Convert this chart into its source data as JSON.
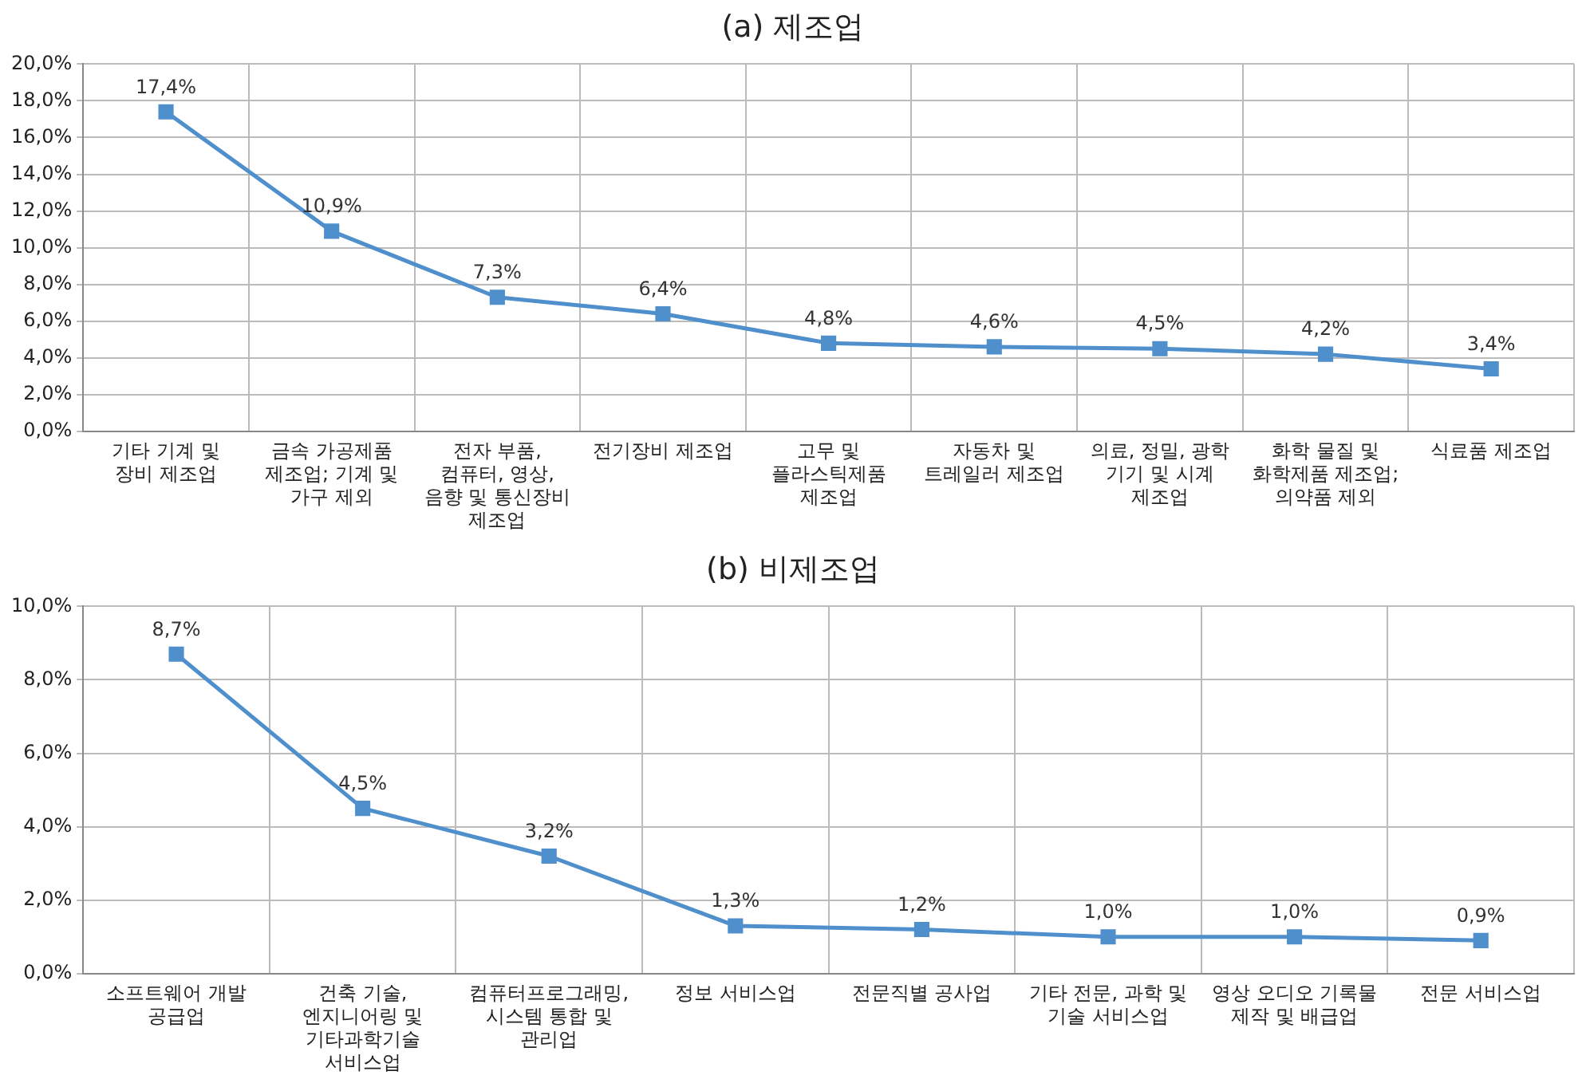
{
  "chart_data": [
    {
      "type": "line",
      "title": "(a) 제조업",
      "categories": [
        "기타 기계 및 장비 제조업",
        "금속 가공제품 제조업; 기계 및 가구 제외",
        "전자 부품, 컴퓨터, 영상, 음향 및 통신장비 제조업",
        "전기장비 제조업",
        "고무 및 플라스틱제품 제조업",
        "자동차 및 트레일러 제조업",
        "의료, 정밀, 광학 기기 및 시계 제조업",
        "화학 물질 및 화학제품 제조업; 의약품 제외",
        "식료품 제조업"
      ],
      "series": [
        {
          "color": "#4f8fcc",
          "values": [
            17.4,
            10.9,
            7.3,
            6.4,
            4.8,
            4.6,
            4.5,
            4.2,
            3.4
          ],
          "value_labels": [
            "17,4%",
            "10,9%",
            "7,3%",
            "6,4%",
            "4,8%",
            "4,6%",
            "4,5%",
            "4,2%",
            "3,4%"
          ]
        }
      ],
      "ylim": [
        0,
        20
      ],
      "yticks": [
        {
          "value": 0,
          "label": "0,0%"
        },
        {
          "value": 2,
          "label": "2,0%"
        },
        {
          "value": 4,
          "label": "4,0%"
        },
        {
          "value": 6,
          "label": "6,0%"
        },
        {
          "value": 8,
          "label": "8,0%"
        },
        {
          "value": 10,
          "label": "10,0%"
        },
        {
          "value": 12,
          "label": "12,0%"
        },
        {
          "value": 14,
          "label": "14,0%"
        },
        {
          "value": 16,
          "label": "16,0%"
        },
        {
          "value": 18,
          "label": "18,0%"
        },
        {
          "value": 20,
          "label": "20,0%"
        }
      ],
      "grid": true,
      "marker": "square",
      "line_style": "solid"
    },
    {
      "type": "line",
      "title": "(b) 비제조업",
      "categories": [
        "소프트웨어 개발 공급업",
        "건축 기술, 엔지니어링 및 기타과학기술 서비스업",
        "컴퓨터프로그래밍, 시스템 통합 및 관리업",
        "정보 서비스업",
        "전문직별 공사업",
        "기타 전문, 과학 및 기술 서비스업",
        "영상 오디오 기록물 제작 및 배급업",
        "전문 서비스업"
      ],
      "series": [
        {
          "color": "#4f8fcc",
          "values": [
            8.7,
            4.5,
            3.2,
            1.3,
            1.2,
            1.0,
            1.0,
            0.9
          ],
          "value_labels": [
            "8,7%",
            "4,5%",
            "3,2%",
            "1,3%",
            "1,2%",
            "1,0%",
            "1,0%",
            "0,9%"
          ]
        }
      ],
      "ylim": [
        0,
        10
      ],
      "yticks": [
        {
          "value": 0,
          "label": "0,0%"
        },
        {
          "value": 2,
          "label": "2,0%"
        },
        {
          "value": 4,
          "label": "4,0%"
        },
        {
          "value": 6,
          "label": "6,0%"
        },
        {
          "value": 8,
          "label": "8,0%"
        },
        {
          "value": 10,
          "label": "10,0%"
        }
      ],
      "grid": true,
      "marker": "square",
      "line_style": "solid"
    }
  ]
}
